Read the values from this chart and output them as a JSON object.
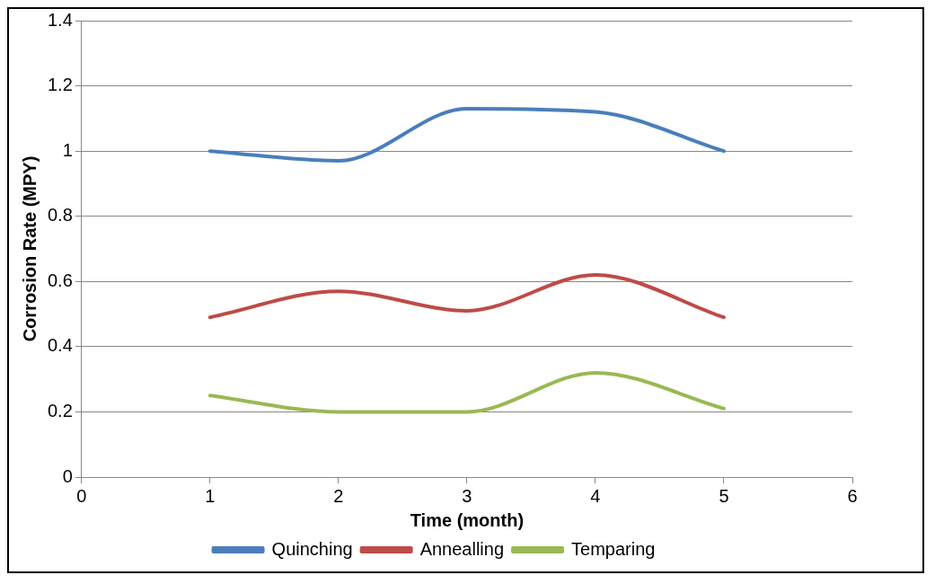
{
  "chart_data": {
    "type": "line",
    "xlabel": "Time (month)",
    "ylabel": "Corrosion Rate (MPY)",
    "x": [
      1,
      2,
      3,
      4,
      5
    ],
    "series": [
      {
        "name": "Quinching",
        "color": "#4a7ebb",
        "values": [
          1.0,
          0.97,
          1.13,
          1.12,
          1.0
        ]
      },
      {
        "name": "Annealling",
        "color": "#be4b48",
        "values": [
          0.49,
          0.57,
          0.51,
          0.62,
          0.49
        ]
      },
      {
        "name": "Temparing",
        "color": "#98b954",
        "values": [
          0.25,
          0.2,
          0.2,
          0.32,
          0.21
        ]
      }
    ],
    "xlim": [
      0,
      6
    ],
    "xticks": [
      0,
      1,
      2,
      3,
      4,
      5,
      6
    ],
    "ylim": [
      0,
      1.4
    ],
    "yticks": [
      0,
      0.2,
      0.4,
      0.6,
      0.8,
      1,
      1.2,
      1.4
    ],
    "grid": "y",
    "legend": "bottom",
    "marker": "none",
    "line_style": "solid"
  }
}
